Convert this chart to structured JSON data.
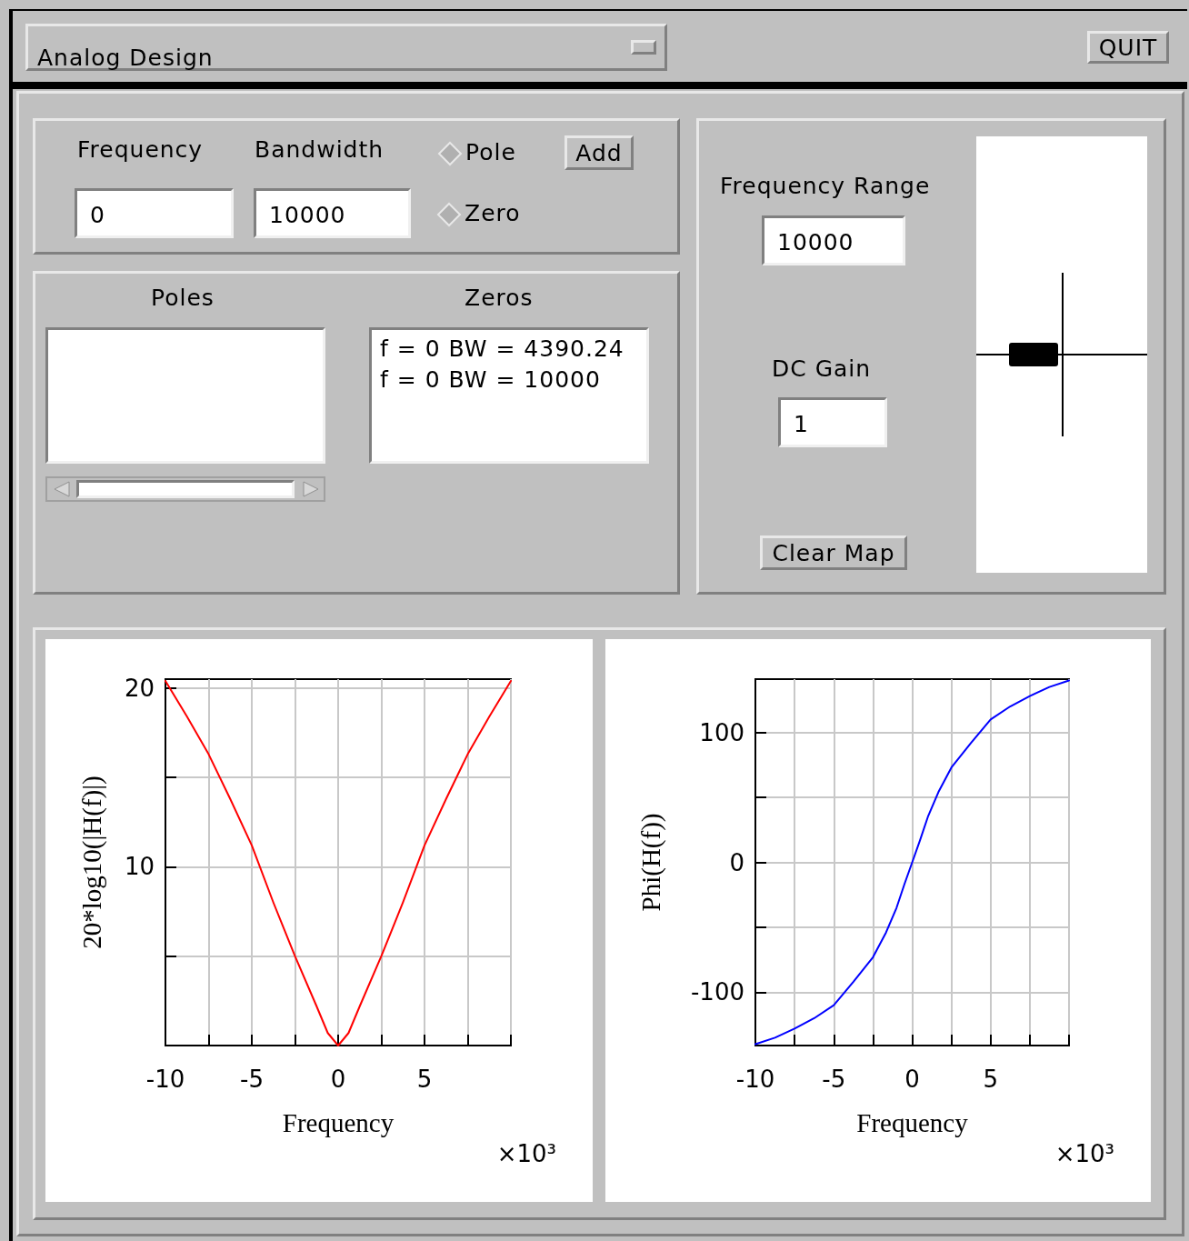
{
  "chart_data": [
    {
      "type": "other",
      "title": "Analog Design",
      "annotations": [
        "QUIT",
        "Frequency",
        "Bandwidth",
        "Pole",
        "Add",
        "Zero",
        "0",
        "10000",
        "Poles",
        "Zeros",
        "f = 0  BW = 4390.24",
        "f = 0  BW = 10000",
        "Frequency Range",
        "10000",
        "DC Gain",
        "1",
        "Clear Map"
      ]
    },
    {
      "type": "line",
      "xlabel": "Frequency",
      "ylabel": "20*log10(|H(f)|)",
      "annotations": [
        "×10³"
      ],
      "xlim": [
        -10,
        10
      ],
      "ylim": [
        0,
        20.5
      ],
      "xticks": [
        -10,
        {
          "value": -7.5,
          "label": null
        },
        -5,
        {
          "value": -2.5,
          "label": null
        },
        0,
        {
          "value": 2.5,
          "label": null
        },
        5,
        {
          "value": 7.5,
          "label": null
        },
        {
          "value": 10,
          "label": null
        }
      ],
      "yticks": [
        {
          "value": 0,
          "label": null
        },
        {
          "value": 5,
          "label": null
        },
        10,
        {
          "value": 15,
          "label": null
        },
        20
      ],
      "grid": true,
      "marker": "none",
      "line_style": "solid",
      "series": [
        {
          "color": "#ff0000",
          "x": [
            -10,
            -8.75,
            -7.5,
            -6.25,
            -5,
            -3.75,
            -2.5,
            -1.25,
            -0.6,
            0,
            0.6,
            1.25,
            2.5,
            3.75,
            5,
            6.25,
            7.5,
            8.75,
            10
          ],
          "values": [
            20.4,
            18.4,
            16.3,
            13.8,
            11.2,
            8.0,
            5.0,
            2.2,
            0.7,
            0,
            0.7,
            2.2,
            5.0,
            8.0,
            11.2,
            13.8,
            16.3,
            18.4,
            20.4
          ]
        }
      ]
    },
    {
      "type": "line",
      "xlabel": "Frequency",
      "ylabel": "Phi(H(f))",
      "annotations": [
        "×10³"
      ],
      "xlim": [
        -10,
        10
      ],
      "ylim": [
        -141,
        141
      ],
      "xticks": [
        -10,
        {
          "value": -7.5,
          "label": null
        },
        -5,
        {
          "value": -2.5,
          "label": null
        },
        0,
        {
          "value": 2.5,
          "label": null
        },
        5,
        {
          "value": 7.5,
          "label": null
        },
        {
          "value": 10,
          "label": null
        }
      ],
      "yticks": [
        -100,
        {
          "value": -50,
          "label": null
        },
        0,
        {
          "value": 50,
          "label": null
        },
        100
      ],
      "grid": true,
      "marker": "none",
      "line_style": "solid",
      "series": [
        {
          "color": "#0000ff",
          "x": [
            -10,
            -8.75,
            -7.5,
            -6.25,
            -5,
            -3.75,
            -2.5,
            -1.67,
            -1,
            -0.5,
            0,
            0.5,
            1,
            1.67,
            2.5,
            3.75,
            5,
            6.25,
            7.5,
            8.75,
            10
          ],
          "values": [
            -140,
            -135,
            -128,
            -120,
            -110,
            -92,
            -73,
            -54,
            -35,
            -17,
            0,
            17,
            35,
            54,
            73,
            92,
            110,
            120,
            128,
            135,
            140
          ]
        }
      ]
    }
  ]
}
